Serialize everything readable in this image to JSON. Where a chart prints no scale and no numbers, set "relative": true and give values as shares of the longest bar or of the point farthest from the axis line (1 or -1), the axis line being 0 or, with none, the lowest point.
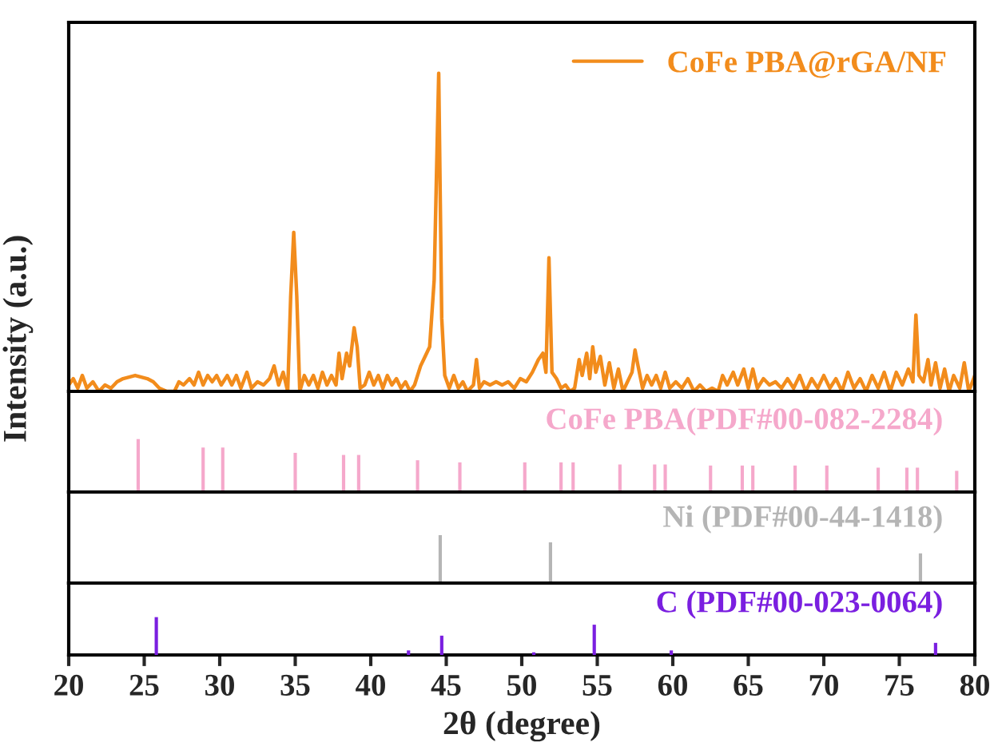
{
  "chart_data": [
    {
      "type": "line",
      "ylabel": "Intensity (a.u.)",
      "relative": true,
      "legend": "top right",
      "xlim": [
        20,
        80
      ],
      "tick_labels": false,
      "series": [
        {
          "name": "CoFe PBA@rGA/NF",
          "color": "#f28c1c",
          "x": [
            20.0,
            20.3,
            20.6,
            20.9,
            21.2,
            21.6,
            22.0,
            22.4,
            22.8,
            23.2,
            23.6,
            24.0,
            24.4,
            24.8,
            25.2,
            25.6,
            26.0,
            26.5,
            27.0,
            27.3,
            27.6,
            28.0,
            28.3,
            28.6,
            28.9,
            29.2,
            29.5,
            29.8,
            30.1,
            30.5,
            30.8,
            31.1,
            31.4,
            31.8,
            32.1,
            32.5,
            32.9,
            33.3,
            33.6,
            33.9,
            34.2,
            34.5,
            34.7,
            34.9,
            35.1,
            35.3,
            35.6,
            35.9,
            36.2,
            36.5,
            36.8,
            37.1,
            37.4,
            37.7,
            37.9,
            38.1,
            38.4,
            38.6,
            38.9,
            39.1,
            39.3,
            39.6,
            39.9,
            40.2,
            40.5,
            40.8,
            41.1,
            41.4,
            41.7,
            42.0,
            42.3,
            42.6,
            42.9,
            43.3,
            43.6,
            43.9,
            44.2,
            44.5,
            44.7,
            44.9,
            45.2,
            45.5,
            45.8,
            46.1,
            46.4,
            46.8,
            47.0,
            47.2,
            47.5,
            47.9,
            48.3,
            48.7,
            49.1,
            49.5,
            49.9,
            50.3,
            50.7,
            51.1,
            51.4,
            51.6,
            51.8,
            52.0,
            52.3,
            52.6,
            52.9,
            53.2,
            53.5,
            53.8,
            54.0,
            54.3,
            54.5,
            54.7,
            54.9,
            55.2,
            55.5,
            55.8,
            56.1,
            56.4,
            56.7,
            57.0,
            57.3,
            57.5,
            57.7,
            58.0,
            58.3,
            58.6,
            58.9,
            59.2,
            59.5,
            59.8,
            60.2,
            60.6,
            61.0,
            61.4,
            61.8,
            62.2,
            62.6,
            63.0,
            63.3,
            63.6,
            64.0,
            64.3,
            64.7,
            65.0,
            65.3,
            65.6,
            66.0,
            66.4,
            66.8,
            67.2,
            67.6,
            68.0,
            68.4,
            68.8,
            69.2,
            69.6,
            70.0,
            70.4,
            70.8,
            71.2,
            71.6,
            72.0,
            72.4,
            72.8,
            73.2,
            73.6,
            74.0,
            74.4,
            74.8,
            75.2,
            75.6,
            75.9,
            76.1,
            76.3,
            76.6,
            76.9,
            77.1,
            77.4,
            77.7,
            78.0,
            78.3,
            78.6,
            79.0,
            79.3,
            79.6,
            80.0
          ],
          "values": [
            0.02,
            0.04,
            0.01,
            0.05,
            0.01,
            0.03,
            0.0,
            0.02,
            0.01,
            0.03,
            0.04,
            0.045,
            0.05,
            0.045,
            0.04,
            0.03,
            0.01,
            0.0,
            0.0,
            0.03,
            0.02,
            0.04,
            0.02,
            0.06,
            0.02,
            0.05,
            0.03,
            0.05,
            0.02,
            0.05,
            0.02,
            0.05,
            0.01,
            0.06,
            0.01,
            0.03,
            0.02,
            0.04,
            0.08,
            0.02,
            0.06,
            0.0,
            0.3,
            0.5,
            0.3,
            0.0,
            0.05,
            0.02,
            0.05,
            0.01,
            0.06,
            0.02,
            0.05,
            0.02,
            0.12,
            0.04,
            0.12,
            0.08,
            0.2,
            0.14,
            0.01,
            0.02,
            0.06,
            0.02,
            0.05,
            0.01,
            0.05,
            0.02,
            0.04,
            0.01,
            0.03,
            0.0,
            0.02,
            0.08,
            0.11,
            0.14,
            0.35,
            1.0,
            0.23,
            0.05,
            0.01,
            0.05,
            0.01,
            0.03,
            0.0,
            0.02,
            0.1,
            0.01,
            0.03,
            0.02,
            0.03,
            0.02,
            0.03,
            0.01,
            0.04,
            0.03,
            0.06,
            0.1,
            0.12,
            0.06,
            0.42,
            0.06,
            0.04,
            0.01,
            0.02,
            0.0,
            0.01,
            0.1,
            0.05,
            0.12,
            0.04,
            0.14,
            0.06,
            0.11,
            0.02,
            0.09,
            0.01,
            0.07,
            0.0,
            0.03,
            0.06,
            0.13,
            0.08,
            0.01,
            0.05,
            0.02,
            0.05,
            0.01,
            0.06,
            0.01,
            0.03,
            0.01,
            0.04,
            0.0,
            0.02,
            0.0,
            0.01,
            0.0,
            0.05,
            0.02,
            0.06,
            0.02,
            0.07,
            0.01,
            0.07,
            0.01,
            0.04,
            0.02,
            0.03,
            0.01,
            0.04,
            0.01,
            0.05,
            0.0,
            0.04,
            0.01,
            0.05,
            0.01,
            0.04,
            0.0,
            0.06,
            0.01,
            0.04,
            0.0,
            0.05,
            0.01,
            0.06,
            0.0,
            0.06,
            0.02,
            0.07,
            0.03,
            0.24,
            0.05,
            0.03,
            0.1,
            0.02,
            0.09,
            0.01,
            0.07,
            0.0,
            0.05,
            0.01,
            0.09,
            0.0,
            0.05
          ]
        }
      ]
    },
    {
      "type": "bar",
      "relative": true,
      "xlim": [
        20,
        80
      ],
      "tick_labels": false,
      "series": [
        {
          "name": "CoFe PBA(PDF#00-082-2284)",
          "color": "#f5a8cb",
          "x": [
            24.6,
            28.9,
            30.2,
            35.0,
            38.2,
            39.2,
            43.1,
            45.9,
            50.2,
            52.6,
            53.4,
            56.5,
            58.8,
            59.5,
            62.5,
            64.6,
            65.3,
            68.1,
            70.2,
            73.6,
            75.5,
            76.2,
            78.8
          ],
          "values": [
            1.0,
            0.84,
            0.84,
            0.74,
            0.7,
            0.7,
            0.6,
            0.56,
            0.56,
            0.56,
            0.56,
            0.52,
            0.52,
            0.52,
            0.5,
            0.5,
            0.5,
            0.5,
            0.5,
            0.46,
            0.46,
            0.46,
            0.4
          ]
        }
      ]
    },
    {
      "type": "bar",
      "relative": true,
      "xlim": [
        20,
        80
      ],
      "tick_labels": false,
      "series": [
        {
          "name": "Ni (PDF#00-44-1418)",
          "color": "#b5b5b5",
          "x": [
            44.6,
            51.9,
            76.4
          ],
          "values": [
            1.0,
            0.85,
            0.62
          ]
        }
      ]
    },
    {
      "type": "bar",
      "relative": true,
      "xlabel": "2θ (degree)",
      "xlim": [
        20,
        80
      ],
      "xticks": [
        20,
        25,
        30,
        35,
        40,
        45,
        50,
        55,
        60,
        65,
        70,
        75,
        80
      ],
      "tick_labels": "x",
      "series": [
        {
          "name": "C (PDF#00-023-0064)",
          "color": "#7a1fe0",
          "x": [
            25.8,
            42.5,
            44.7,
            50.8,
            54.8,
            59.9,
            77.4
          ],
          "values": [
            1.0,
            0.12,
            0.51,
            0.07,
            0.8,
            0.12,
            0.32
          ]
        }
      ]
    }
  ]
}
